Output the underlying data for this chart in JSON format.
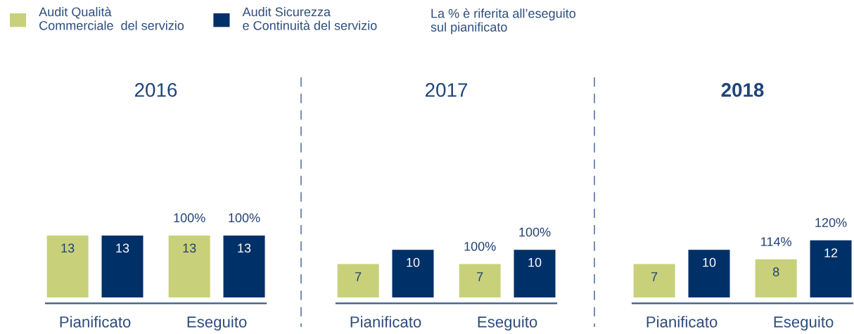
{
  "chart_data": [
    {
      "type": "bar",
      "title": "2016",
      "categories": [
        "Pianificato",
        "Eseguito"
      ],
      "series": [
        {
          "name": "Audit Qualità\nCommerciale  del servizio",
          "color": "#c8d17a",
          "values": [
            13,
            13
          ]
        },
        {
          "name": "Audit Sicurezza\ne Continuità del servizio",
          "color": "#003068",
          "values": [
            13,
            13
          ]
        }
      ],
      "data_labels": true,
      "legend": "top right",
      "annotations": [
        "La % è riferita all’eseguito\nsul pianificato",
        "100%",
        "100%"
      ]
    },
    {
      "type": "bar",
      "title": "2017",
      "categories": [
        "Pianificato",
        "Eseguito"
      ],
      "series": [
        {
          "color": "#c8d17a",
          "values": [
            7,
            7
          ]
        },
        {
          "color": "#003068",
          "values": [
            10,
            10
          ]
        }
      ],
      "data_labels": true,
      "annotations": [
        "100%",
        "100%"
      ]
    },
    {
      "type": "bar",
      "title": "2018",
      "categories": [
        "Pianificato",
        "Eseguito"
      ],
      "series": [
        {
          "color": "#c8d17a",
          "values": [
            7,
            8
          ]
        },
        {
          "color": "#003068",
          "values": [
            10,
            12
          ]
        }
      ],
      "data_labels": true,
      "annotations": [
        "114%",
        "120%"
      ]
    }
  ]
}
